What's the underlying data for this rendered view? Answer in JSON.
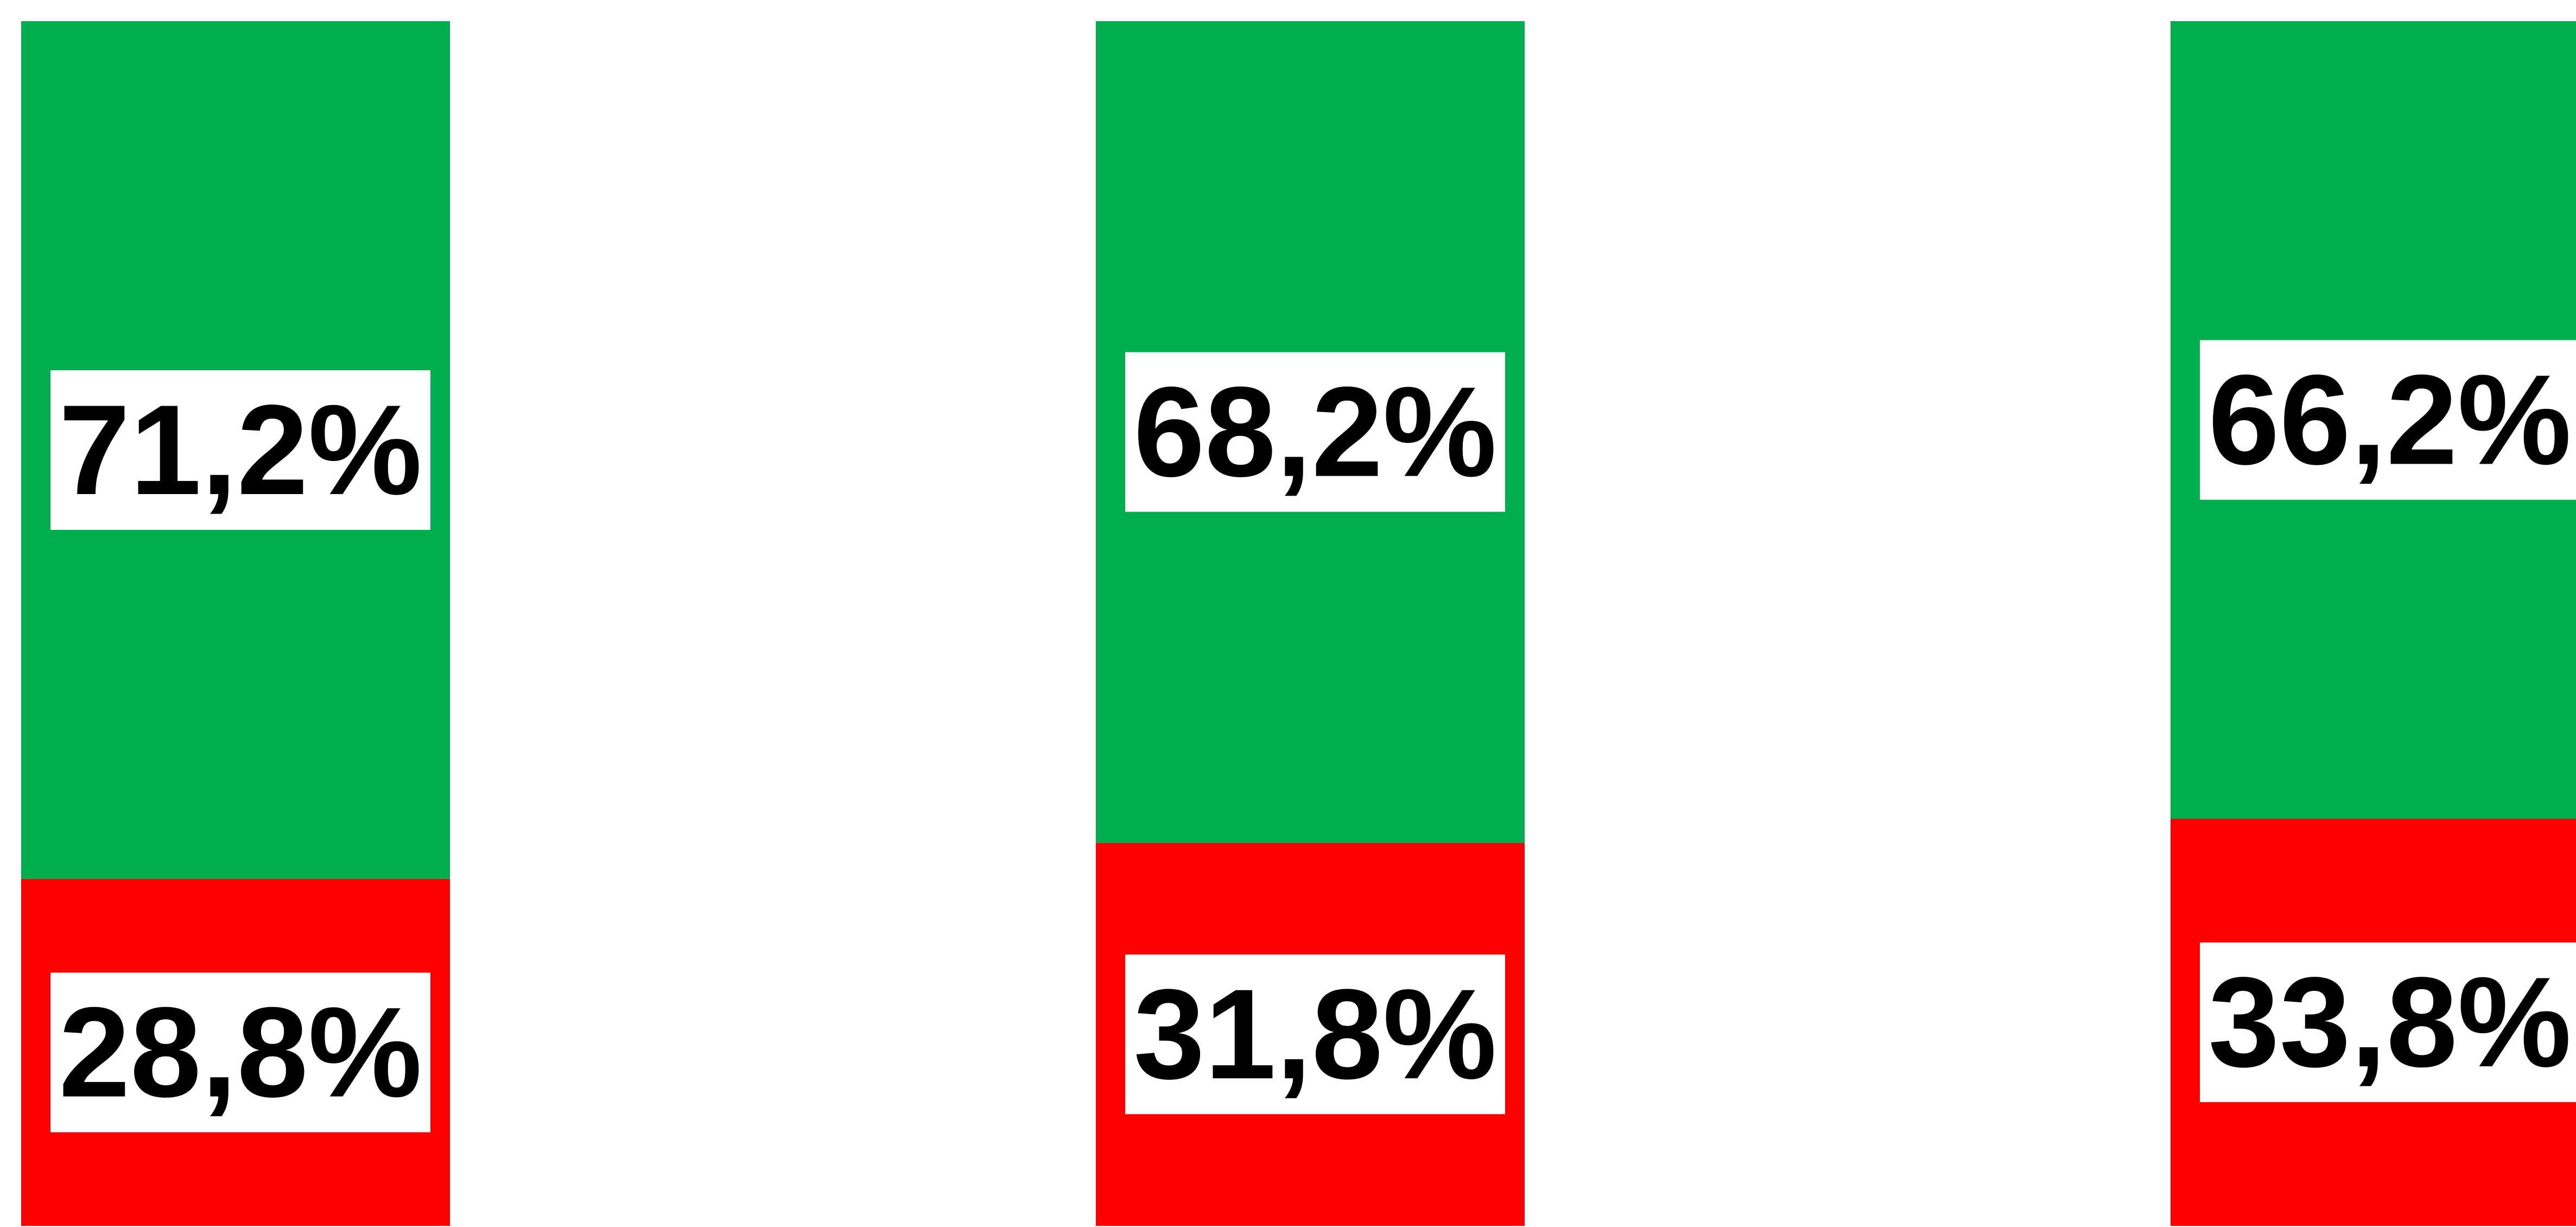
{
  "chart_data": {
    "type": "bar",
    "stacked": true,
    "ylim": [
      0,
      100
    ],
    "series": [
      {
        "color": "#ff0000",
        "values": [
          28.8,
          31.8,
          33.8
        ],
        "value_labels": [
          "28,8%",
          "31,8%",
          "33,8%"
        ]
      },
      {
        "color": "#00ae50",
        "values": [
          71.2,
          68.2,
          66.2
        ],
        "value_labels": [
          "71,2%",
          "68,2%",
          "66,2%"
        ]
      }
    ]
  }
}
